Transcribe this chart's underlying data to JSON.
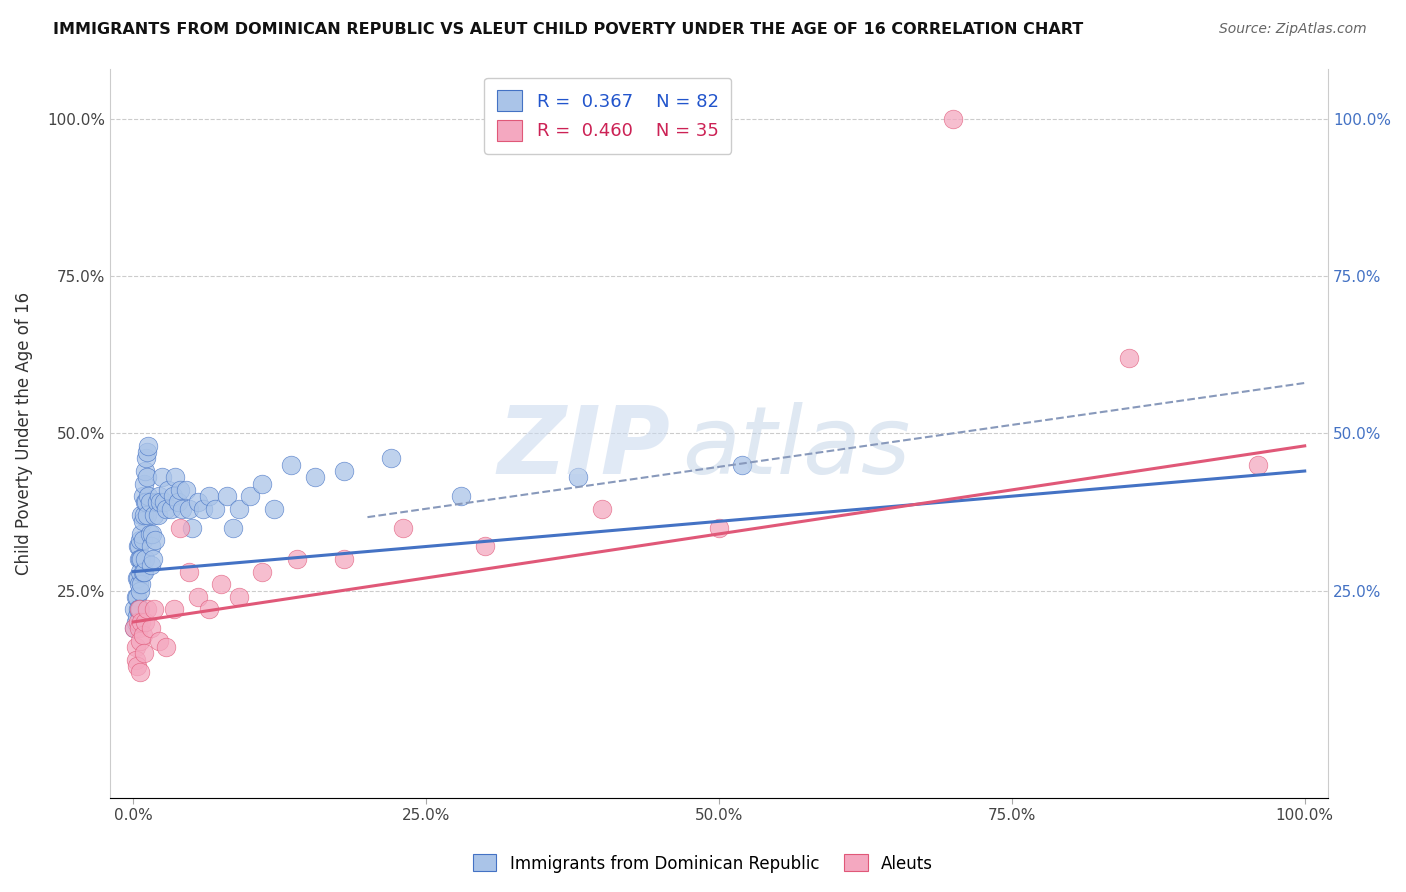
{
  "title": "IMMIGRANTS FROM DOMINICAN REPUBLIC VS ALEUT CHILD POVERTY UNDER THE AGE OF 16 CORRELATION CHART",
  "source": "Source: ZipAtlas.com",
  "ylabel": "Child Poverty Under the Age of 16",
  "xlabel": "",
  "xlim": [
    -0.02,
    1.02
  ],
  "ylim": [
    -0.08,
    1.08
  ],
  "xticks": [
    0.0,
    0.25,
    0.5,
    0.75,
    1.0
  ],
  "yticks": [
    0.0,
    0.25,
    0.5,
    0.75,
    1.0
  ],
  "xticklabels": [
    "0.0%",
    "25.0%",
    "50.0%",
    "75.0%",
    "100.0%"
  ],
  "yticklabels_left": [
    "",
    "25.0%",
    "50.0%",
    "75.0%",
    "100.0%"
  ],
  "yticklabels_right": [
    "",
    "25.0%",
    "50.0%",
    "75.0%",
    "100.0%"
  ],
  "blue_R": 0.367,
  "blue_N": 82,
  "pink_R": 0.46,
  "pink_N": 35,
  "blue_color": "#aac4e8",
  "pink_color": "#f4a8c0",
  "blue_line_color": "#4472c4",
  "pink_line_color": "#e05878",
  "dashed_line_color": "#8899bb",
  "blue_line_x0": 0.0,
  "blue_line_y0": 0.28,
  "blue_line_x1": 1.0,
  "blue_line_y1": 0.44,
  "pink_line_x0": 0.0,
  "pink_line_y0": 0.2,
  "pink_line_x1": 1.0,
  "pink_line_y1": 0.48,
  "dash_line_x0": 0.25,
  "dash_line_y0": 0.38,
  "dash_line_x1": 1.0,
  "dash_line_y1": 0.58,
  "blue_scatter_x": [
    0.001,
    0.001,
    0.002,
    0.002,
    0.003,
    0.003,
    0.003,
    0.004,
    0.004,
    0.004,
    0.005,
    0.005,
    0.005,
    0.005,
    0.006,
    0.006,
    0.006,
    0.006,
    0.006,
    0.007,
    0.007,
    0.007,
    0.007,
    0.008,
    0.008,
    0.008,
    0.008,
    0.009,
    0.009,
    0.009,
    0.01,
    0.01,
    0.01,
    0.011,
    0.011,
    0.012,
    0.012,
    0.012,
    0.013,
    0.013,
    0.014,
    0.014,
    0.015,
    0.015,
    0.016,
    0.017,
    0.018,
    0.019,
    0.02,
    0.021,
    0.022,
    0.023,
    0.025,
    0.026,
    0.028,
    0.03,
    0.032,
    0.034,
    0.036,
    0.038,
    0.04,
    0.042,
    0.045,
    0.048,
    0.05,
    0.055,
    0.06,
    0.065,
    0.07,
    0.08,
    0.085,
    0.09,
    0.1,
    0.11,
    0.12,
    0.135,
    0.155,
    0.18,
    0.22,
    0.28,
    0.38,
    0.52
  ],
  "blue_scatter_y": [
    0.22,
    0.19,
    0.2,
    0.24,
    0.27,
    0.24,
    0.21,
    0.32,
    0.27,
    0.22,
    0.32,
    0.3,
    0.26,
    0.22,
    0.33,
    0.3,
    0.28,
    0.25,
    0.22,
    0.37,
    0.34,
    0.3,
    0.26,
    0.4,
    0.36,
    0.33,
    0.28,
    0.42,
    0.37,
    0.28,
    0.44,
    0.39,
    0.3,
    0.46,
    0.39,
    0.47,
    0.43,
    0.37,
    0.48,
    0.4,
    0.39,
    0.34,
    0.32,
    0.29,
    0.34,
    0.3,
    0.37,
    0.33,
    0.39,
    0.37,
    0.4,
    0.39,
    0.43,
    0.39,
    0.38,
    0.41,
    0.38,
    0.4,
    0.43,
    0.39,
    0.41,
    0.38,
    0.41,
    0.38,
    0.35,
    0.39,
    0.38,
    0.4,
    0.38,
    0.4,
    0.35,
    0.38,
    0.4,
    0.42,
    0.38,
    0.45,
    0.43,
    0.44,
    0.46,
    0.4,
    0.43,
    0.45
  ],
  "pink_scatter_x": [
    0.001,
    0.002,
    0.002,
    0.003,
    0.004,
    0.005,
    0.005,
    0.006,
    0.006,
    0.007,
    0.008,
    0.009,
    0.01,
    0.012,
    0.015,
    0.018,
    0.022,
    0.028,
    0.035,
    0.04,
    0.048,
    0.055,
    0.065,
    0.075,
    0.09,
    0.11,
    0.14,
    0.18,
    0.23,
    0.3,
    0.4,
    0.5,
    0.7,
    0.85,
    0.96
  ],
  "pink_scatter_y": [
    0.19,
    0.16,
    0.14,
    0.13,
    0.2,
    0.22,
    0.19,
    0.17,
    0.12,
    0.2,
    0.18,
    0.15,
    0.2,
    0.22,
    0.19,
    0.22,
    0.17,
    0.16,
    0.22,
    0.35,
    0.28,
    0.24,
    0.22,
    0.26,
    0.24,
    0.28,
    0.3,
    0.3,
    0.35,
    0.32,
    0.38,
    0.35,
    1.0,
    0.62,
    0.45
  ]
}
